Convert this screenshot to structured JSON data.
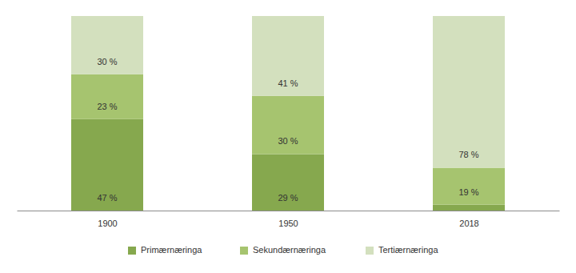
{
  "chart_data": {
    "type": "bar",
    "stacked": true,
    "data_labels": true,
    "tick_labels": "x",
    "categories": [
      "1900",
      "1950",
      "2018"
    ],
    "ylim": [
      0,
      100
    ],
    "series": [
      {
        "name": "Primærnæringa",
        "color": "#86a84e",
        "values": [
          47,
          29,
          3
        ],
        "value_labels": [
          "47 %",
          "29 %",
          null
        ]
      },
      {
        "name": "Sekundærnæringa",
        "color": "#a6c46f",
        "values": [
          23,
          30,
          19
        ],
        "value_labels": [
          "23 %",
          "30 %",
          "19 %"
        ]
      },
      {
        "name": "Tertiærnæringa",
        "color": "#d3e0be",
        "values": [
          30,
          41,
          78
        ],
        "value_labels": [
          "30 %",
          "41 %",
          "78 %"
        ]
      }
    ]
  }
}
